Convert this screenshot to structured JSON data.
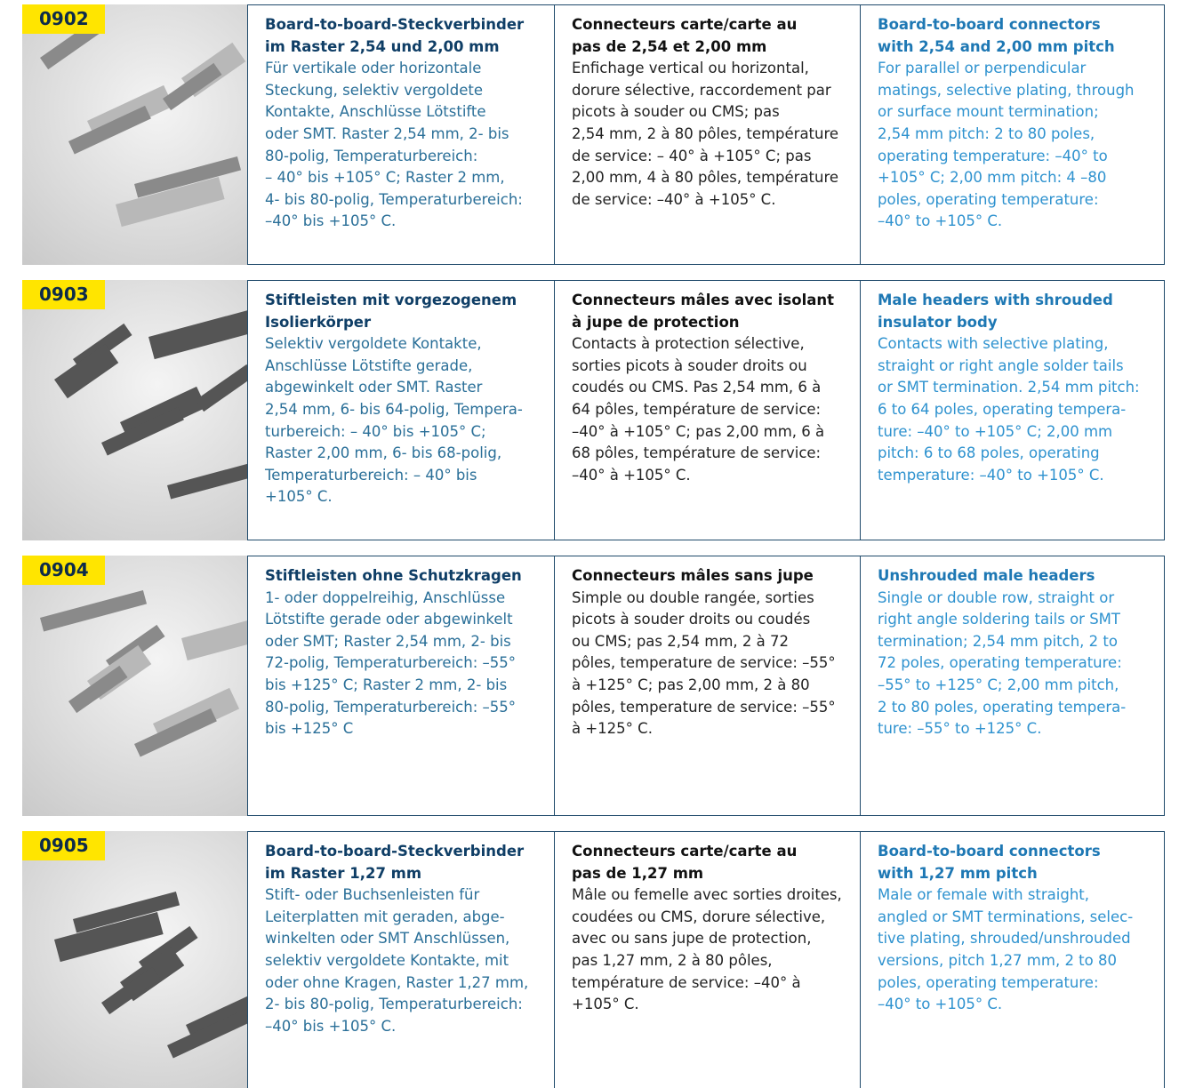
{
  "rows": [
    {
      "code": "0902",
      "de": {
        "title": [
          "Board-to-board-Steckverbinder",
          "im Raster 2,54 und 2,00 mm"
        ],
        "body": [
          "Für vertikale oder horizontale",
          "Steckung, selektiv vergoldete",
          "Kontakte, Anschlüsse Lötstifte",
          "oder SMT. Raster 2,54 mm, 2- bis",
          "80-polig, Temperaturbereich:",
          "– 40° bis +105° C; Raster 2 mm,",
          "4- bis 80-polig, Temperaturbereich:",
          "–40° bis +105° C."
        ]
      },
      "fr": {
        "title": [
          "Connecteurs carte/carte au",
          "pas de 2,54 et 2,00 mm"
        ],
        "body": [
          "Enfichage vertical ou horizontal,",
          "dorure sélective, raccordement par",
          "picots à souder ou CMS; pas",
          "2,54 mm, 2 à 80 pôles, température",
          "de service: – 40° à +105° C; pas",
          "2,00 mm, 4 à 80 pôles, température",
          "de service: –40° à +105° C."
        ]
      },
      "en": {
        "title": [
          "Board-to-board connectors",
          "with 2,54 and 2,00 mm pitch"
        ],
        "body": [
          "For parallel or perpendicular",
          "matings, selective plating, through",
          "or surface mount termination;",
          "2,54 mm pitch: 2 to 80 poles,",
          "operating temperature: –40° to",
          "+105° C; 2,00 mm pitch: 4 –80",
          "poles, operating temperature:",
          "–40° to +105° C."
        ]
      }
    },
    {
      "code": "0903",
      "de": {
        "title": [
          "Stiftleisten mit vorgezogenem",
          "Isolierkörper"
        ],
        "body": [
          "Selektiv vergoldete Kontakte,",
          "Anschlüsse Lötstifte gerade,",
          "abgewinkelt oder SMT. Raster",
          "2,54 mm, 6- bis 64-polig, Tempera-",
          "turbereich: – 40° bis +105° C;",
          "Raster 2,00 mm, 6- bis 68-polig,",
          "Temperaturbereich: – 40° bis",
          "+105° C."
        ]
      },
      "fr": {
        "title": [
          "Connecteurs mâles avec isolant",
          "à jupe de protection"
        ],
        "body": [
          "Contacts à protection sélective,",
          "sorties picots à souder droits ou",
          "coudés ou CMS. Pas 2,54 mm, 6 à",
          "64 pôles, température de service:",
          "–40° à +105° C; pas 2,00 mm, 6 à",
          "68 pôles, température de service:",
          "–40° à +105° C."
        ]
      },
      "en": {
        "title": [
          "Male headers with shrouded",
          "insulator body"
        ],
        "body": [
          "Contacts with selective plating,",
          "straight or right angle solder tails",
          "or SMT termination. 2,54 mm pitch:",
          "6 to 64 poles, operating tempera-",
          "ture: –40° to +105° C; 2,00 mm",
          "pitch: 6 to 68 poles, operating",
          "temperature: –40° to +105° C."
        ]
      }
    },
    {
      "code": "0904",
      "de": {
        "title": [
          "Stiftleisten ohne Schutzkragen"
        ],
        "body": [
          "1- oder doppelreihig, Anschlüsse",
          "Lötstifte gerade oder abgewinkelt",
          "oder SMT; Raster 2,54 mm, 2- bis",
          "72-polig, Temperaturbereich: –55°",
          "bis +125° C; Raster 2 mm, 2- bis",
          "80-polig, Temperaturbereich: –55°",
          "bis +125° C"
        ]
      },
      "fr": {
        "title": [
          "Connecteurs mâles sans jupe"
        ],
        "body": [
          "Simple ou double rangée, sorties",
          "picots à souder droits ou coudés",
          "ou CMS; pas 2,54 mm, 2 à 72",
          "pôles, temperature de service: –55°",
          "à +125° C; pas 2,00 mm, 2 à 80",
          "pôles, temperature de service: –55°",
          "à +125° C."
        ]
      },
      "en": {
        "title": [
          "Unshrouded male headers"
        ],
        "body": [
          "Single or double row, straight or",
          "right angle soldering tails or SMT",
          "termination; 2,54 mm pitch, 2 to",
          "72 poles, operating temperature:",
          "–55° to +125° C; 2,00 mm pitch,",
          "2 to 80 poles, operating tempera-",
          "ture: –55° to +125° C."
        ]
      }
    },
    {
      "code": "0905",
      "de": {
        "title": [
          "Board-to-board-Steckverbinder",
          "im Raster 1,27 mm"
        ],
        "body": [
          "Stift- oder Buchsenleisten für",
          "Leiterplatten mit geraden, abge-",
          "winkelten oder SMT Anschlüssen,",
          "selektiv vergoldete Kontakte, mit",
          "oder ohne Kragen, Raster 1,27 mm,",
          "2- bis 80-polig, Temperaturbereich:",
          "–40° bis +105° C."
        ]
      },
      "fr": {
        "title": [
          "Connecteurs carte/carte au",
          "pas de 1,27 mm"
        ],
        "body": [
          "Mâle ou femelle avec sorties droites,",
          "coudées ou CMS, dorure sélective,",
          "avec ou sans jupe de protection,",
          "pas 1,27 mm, 2 à 80 pôles,",
          "température de service: –40° à",
          "+105° C."
        ]
      },
      "en": {
        "title": [
          "Board-to-board connectors",
          "with 1,27 mm pitch"
        ],
        "body": [
          "Male or female with straight,",
          "angled or SMT terminations, selec-",
          "tive plating, shrouded/unshrouded",
          "versions, pitch 1,27 mm, 2 to 80",
          "poles, operating temperature:",
          "–40° to +105° C."
        ]
      }
    }
  ]
}
